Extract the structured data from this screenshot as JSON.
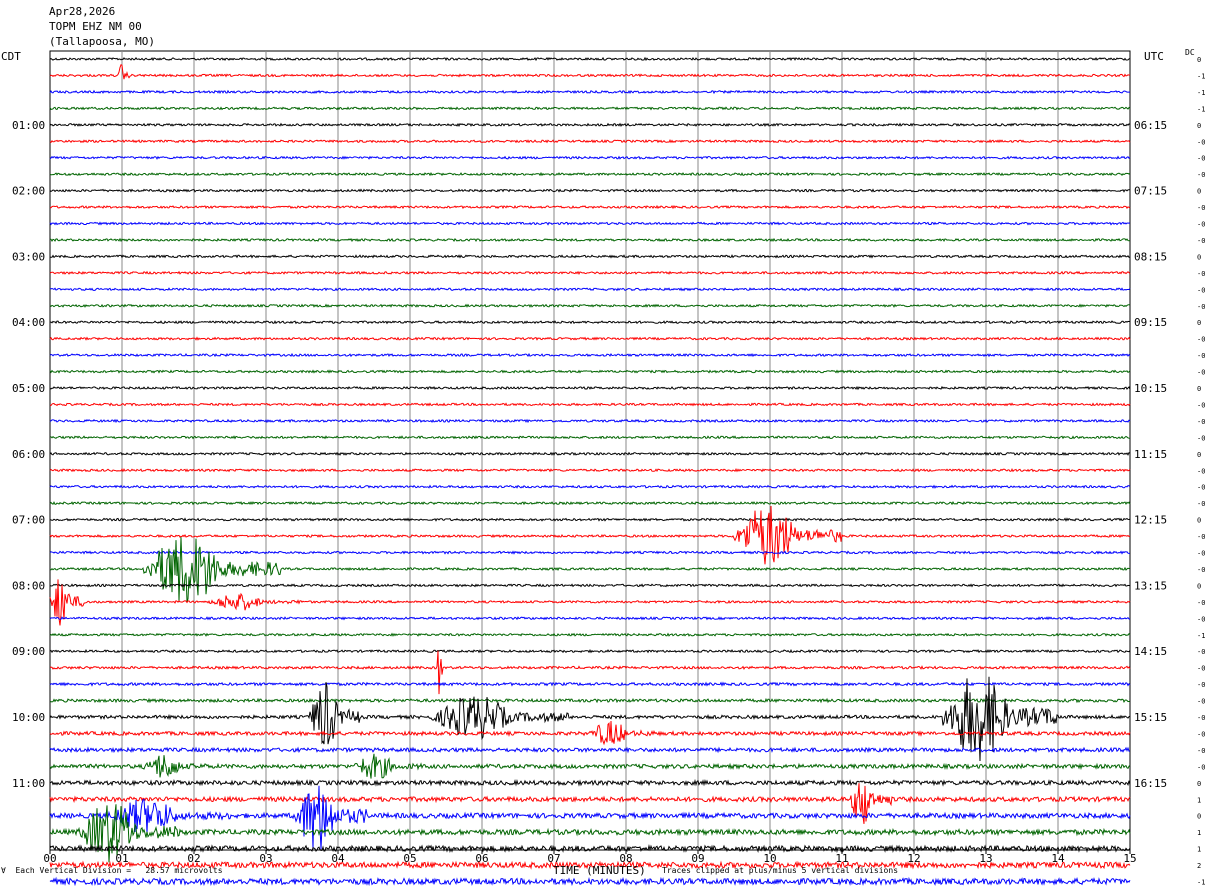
{
  "header": {
    "date": "Apr28,2026",
    "station": "TOPM EHZ NM 00",
    "location": "(Tallapoosa, MO)"
  },
  "labels": {
    "left_axis": "CDT",
    "right_axis": "UTC",
    "dc": "DC",
    "footer_left": "∀  Each Vertical Division =   28.57 microvolts",
    "footer_right": "Traces clipped at plus/minus 5 vertical divisions"
  },
  "chart_data": {
    "type": "line",
    "title": "",
    "xlabel": "TIME (MINUTES)",
    "xlim": [
      0,
      15
    ],
    "x_ticks": [
      "00",
      "01",
      "02",
      "03",
      "04",
      "05",
      "06",
      "07",
      "08",
      "09",
      "10",
      "11",
      "12",
      "13",
      "14",
      "15"
    ],
    "left_time_labels": [
      "01:00",
      "02:00",
      "03:00",
      "04:00",
      "05:00",
      "06:00",
      "07:00",
      "08:00",
      "09:00",
      "10:00",
      "11:00"
    ],
    "right_time_labels": [
      "06:15",
      "07:15",
      "08:15",
      "09:15",
      "10:15",
      "11:15",
      "12:15",
      "13:15",
      "14:15",
      "15:15",
      "16:15"
    ],
    "trace_colors": [
      "#000000",
      "#ff0000",
      "#0000ff",
      "#006400"
    ],
    "dc_offsets": [
      "0",
      "-1",
      "-1",
      "-1",
      "0",
      "-0",
      "-0",
      "-0",
      "0",
      "-0",
      "-0",
      "-0",
      "0",
      "-0",
      "-0",
      "-0",
      "0",
      "-0",
      "-0",
      "-0",
      "0",
      "-0",
      "-0",
      "-0",
      "0",
      "-0",
      "-0",
      "-0",
      "0",
      "-0",
      "-0",
      "-0",
      "0",
      "-0",
      "-0",
      "-1",
      "-0",
      "-0",
      "-0",
      "-0",
      "-0",
      "-0",
      "-0",
      "-0",
      "0",
      "1",
      "0",
      "1",
      "1",
      "2",
      "-1"
    ],
    "events": [
      {
        "line": 1,
        "start_min": 0.95,
        "end_min": 1.1,
        "amplitude": 1.5
      },
      {
        "line": 29,
        "start_min": 9.5,
        "end_min": 11.0,
        "amplitude": 3.5
      },
      {
        "line": 31,
        "start_min": 1.3,
        "end_min": 3.2,
        "amplitude": 4.0
      },
      {
        "line": 33,
        "start_min": 0.0,
        "end_min": 0.5,
        "amplitude": 3.0
      },
      {
        "line": 33,
        "start_min": 2.2,
        "end_min": 3.5,
        "amplitude": 1.0
      },
      {
        "line": 37,
        "start_min": 5.38,
        "end_min": 5.45,
        "amplitude": 5.0
      },
      {
        "line": 40,
        "start_min": 3.6,
        "end_min": 4.3,
        "amplitude": 4.0
      },
      {
        "line": 40,
        "start_min": 5.3,
        "end_min": 7.2,
        "amplitude": 2.5
      },
      {
        "line": 40,
        "start_min": 12.4,
        "end_min": 14.0,
        "amplitude": 5.0
      },
      {
        "line": 41,
        "start_min": 7.5,
        "end_min": 8.4,
        "amplitude": 1.5
      },
      {
        "line": 43,
        "start_min": 1.3,
        "end_min": 2.2,
        "amplitude": 1.5
      },
      {
        "line": 43,
        "start_min": 4.2,
        "end_min": 5.2,
        "amplitude": 1.5
      },
      {
        "line": 45,
        "start_min": 11.1,
        "end_min": 11.7,
        "amplitude": 3.0
      },
      {
        "line": 46,
        "start_min": 0.8,
        "end_min": 2.5,
        "amplitude": 2.0
      },
      {
        "line": 46,
        "start_min": 3.4,
        "end_min": 4.4,
        "amplitude": 4.0
      },
      {
        "line": 47,
        "start_min": 0.4,
        "end_min": 1.8,
        "amplitude": 3.5
      }
    ]
  }
}
